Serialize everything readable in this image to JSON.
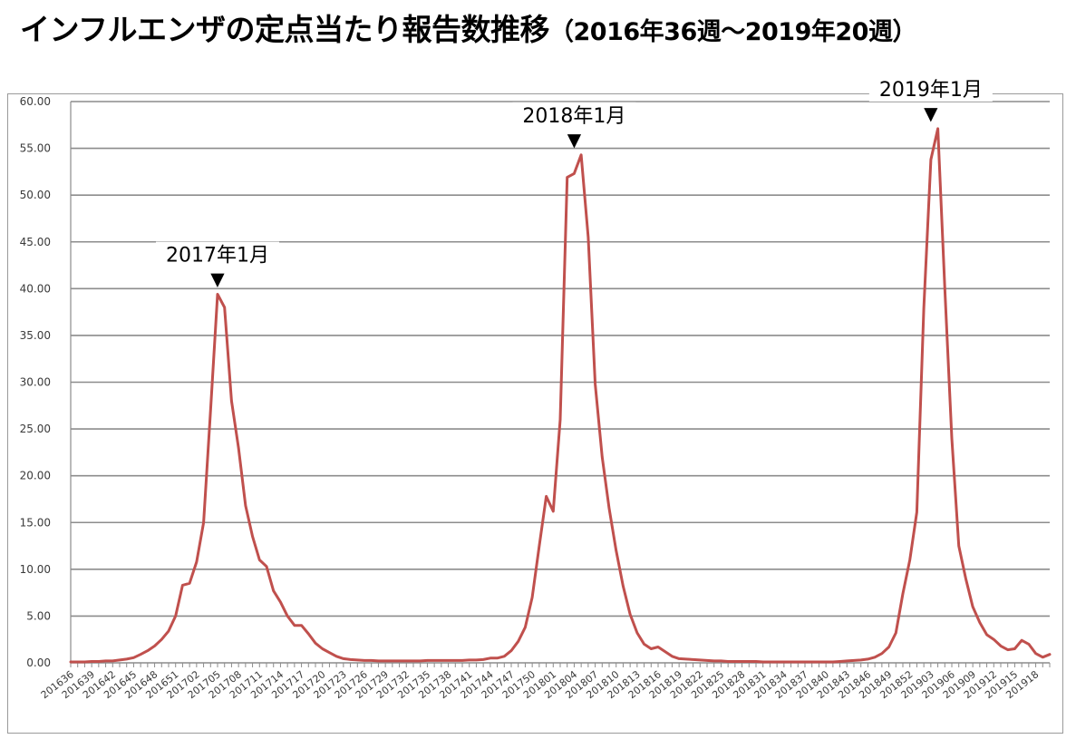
{
  "title": {
    "main": "インフルエンザの定点当たり報告数推移",
    "sub": "（2016年36週〜2019年20週）"
  },
  "colors": {
    "line": "#c0504d",
    "grid": "#8c8c8c",
    "axis_text": "#3a3a3a",
    "annotation": "#000000"
  },
  "chart_data": {
    "type": "line",
    "title": "インフルエンザの定点当たり報告数推移（2016年36週〜2019年20週）",
    "xlabel": "",
    "ylabel": "",
    "ylim": [
      0,
      60
    ],
    "yticks": [
      "0.00",
      "5.00",
      "10.00",
      "15.00",
      "20.00",
      "25.00",
      "30.00",
      "35.00",
      "40.00",
      "45.00",
      "50.00",
      "55.00",
      "60.00"
    ],
    "grid": true,
    "legend": "none",
    "x": [
      "201636",
      "201637",
      "201638",
      "201639",
      "201640",
      "201641",
      "201642",
      "201643",
      "201644",
      "201645",
      "201646",
      "201647",
      "201648",
      "201649",
      "201650",
      "201651",
      "201652",
      "201701",
      "201702",
      "201703",
      "201704",
      "201705",
      "201706",
      "201707",
      "201708",
      "201709",
      "201710",
      "201711",
      "201712",
      "201713",
      "201714",
      "201715",
      "201716",
      "201717",
      "201718",
      "201719",
      "201720",
      "201721",
      "201722",
      "201723",
      "201724",
      "201725",
      "201726",
      "201727",
      "201728",
      "201729",
      "201730",
      "201731",
      "201732",
      "201733",
      "201734",
      "201735",
      "201736",
      "201737",
      "201738",
      "201739",
      "201740",
      "201741",
      "201742",
      "201743",
      "201744",
      "201745",
      "201746",
      "201747",
      "201748",
      "201749",
      "201750",
      "201751",
      "201752",
      "201801",
      "201802",
      "201803",
      "201804",
      "201805",
      "201806",
      "201807",
      "201808",
      "201809",
      "201810",
      "201811",
      "201812",
      "201813",
      "201814",
      "201815",
      "201816",
      "201817",
      "201818",
      "201819",
      "201820",
      "201821",
      "201822",
      "201823",
      "201824",
      "201825",
      "201826",
      "201827",
      "201828",
      "201829",
      "201830",
      "201831",
      "201832",
      "201833",
      "201834",
      "201835",
      "201836",
      "201837",
      "201838",
      "201839",
      "201840",
      "201841",
      "201842",
      "201843",
      "201844",
      "201845",
      "201846",
      "201847",
      "201848",
      "201849",
      "201850",
      "201851",
      "201852",
      "201901",
      "201902",
      "201903",
      "201904",
      "201905",
      "201906",
      "201907",
      "201908",
      "201909",
      "201910",
      "201911",
      "201912",
      "201913",
      "201914",
      "201915",
      "201916",
      "201917",
      "201918",
      "201919",
      "201920"
    ],
    "x_tick_labels": [
      "201636",
      "201639",
      "201642",
      "201645",
      "201648",
      "201651",
      "201702",
      "201705",
      "201708",
      "201711",
      "201714",
      "201717",
      "201720",
      "201723",
      "201726",
      "201729",
      "201732",
      "201735",
      "201738",
      "201741",
      "201744",
      "201747",
      "201750",
      "201801",
      "201804",
      "201807",
      "201810",
      "201813",
      "201816",
      "201819",
      "201822",
      "201825",
      "201828",
      "201831",
      "201834",
      "201837",
      "201840",
      "201843",
      "201846",
      "201849",
      "201852",
      "201903",
      "201906",
      "201909",
      "201912",
      "201915",
      "201918"
    ],
    "series": [
      {
        "values": [
          0.1,
          0.1,
          0.1,
          0.15,
          0.15,
          0.2,
          0.2,
          0.3,
          0.4,
          0.55,
          0.9,
          1.3,
          1.8,
          2.5,
          3.4,
          5.0,
          8.3,
          8.5,
          10.8,
          15.0,
          27.0,
          39.4,
          38.0,
          28.0,
          23.0,
          16.8,
          13.5,
          11.0,
          10.3,
          7.7,
          6.5,
          5.0,
          4.0,
          4.0,
          3.1,
          2.1,
          1.5,
          1.1,
          0.7,
          0.45,
          0.35,
          0.3,
          0.25,
          0.25,
          0.2,
          0.2,
          0.2,
          0.2,
          0.2,
          0.2,
          0.2,
          0.25,
          0.25,
          0.25,
          0.25,
          0.25,
          0.25,
          0.3,
          0.3,
          0.35,
          0.5,
          0.5,
          0.7,
          1.3,
          2.3,
          3.8,
          7.0,
          12.5,
          17.8,
          16.2,
          26.0,
          51.9,
          52.3,
          54.3,
          45.5,
          29.8,
          22.0,
          16.5,
          12.0,
          8.2,
          5.2,
          3.2,
          2.0,
          1.5,
          1.7,
          1.2,
          0.7,
          0.45,
          0.4,
          0.35,
          0.3,
          0.25,
          0.2,
          0.2,
          0.15,
          0.15,
          0.15,
          0.15,
          0.15,
          0.1,
          0.1,
          0.1,
          0.1,
          0.1,
          0.1,
          0.1,
          0.1,
          0.1,
          0.1,
          0.1,
          0.15,
          0.2,
          0.25,
          0.3,
          0.4,
          0.6,
          1.0,
          1.7,
          3.2,
          7.4,
          11.0,
          16.1,
          37.9,
          53.8,
          57.1,
          40.0,
          24.0,
          12.5,
          9.0,
          6.0,
          4.3,
          3.0,
          2.5,
          1.8,
          1.4,
          1.5,
          2.4,
          2.0,
          1.0,
          0.6,
          0.9
        ]
      }
    ],
    "annotations": [
      {
        "label": "2017年1月",
        "x": "201705",
        "marker": "▼"
      },
      {
        "label": "2018年1月",
        "x": "201804",
        "marker": "▼"
      },
      {
        "label": "2019年1月",
        "x": "201903",
        "marker": "▼"
      }
    ]
  }
}
